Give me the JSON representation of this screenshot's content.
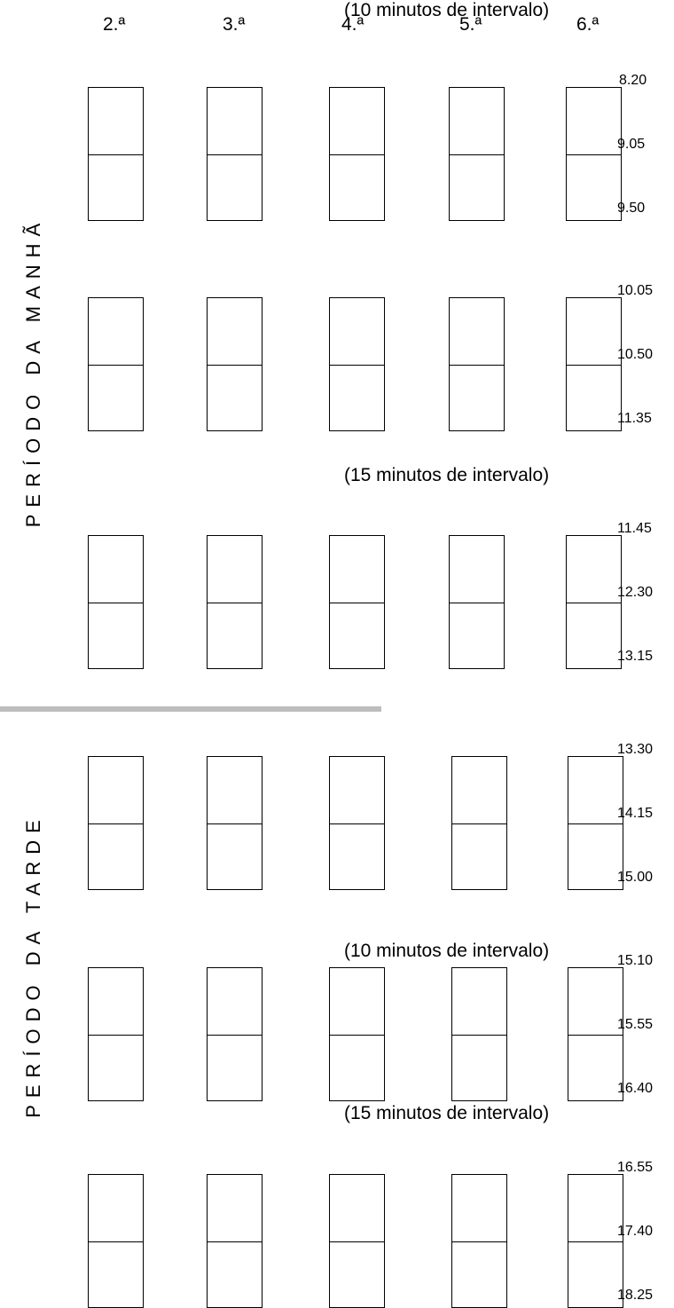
{
  "days": [
    "2.ª",
    "3.ª",
    "4.ª",
    "5.ª",
    "6.ª"
  ],
  "periods": {
    "morning": "PERÍODO DA MANHÃ",
    "afternoon": "PERÍODO DA TARDE"
  },
  "blocks": [
    {
      "times": [
        "8.20",
        "9.05",
        "9.50"
      ]
    },
    {
      "break": "(15 minutos de intervalo)",
      "times": [
        "10.05",
        "10.50",
        "11.35"
      ]
    },
    {
      "break": "(10 minutos de intervalo)",
      "times": [
        "11.45",
        "12.30",
        "13.15"
      ]
    },
    {
      "times": [
        "13.30",
        "14.15",
        "15.00"
      ]
    },
    {
      "break": "(10 minutos de intervalo)",
      "times": [
        "15.10",
        "15.55",
        "16.40"
      ]
    },
    {
      "break": "(15 minutos de intervalo)",
      "times": [
        "16.55",
        "17.40",
        "18.25"
      ]
    }
  ]
}
